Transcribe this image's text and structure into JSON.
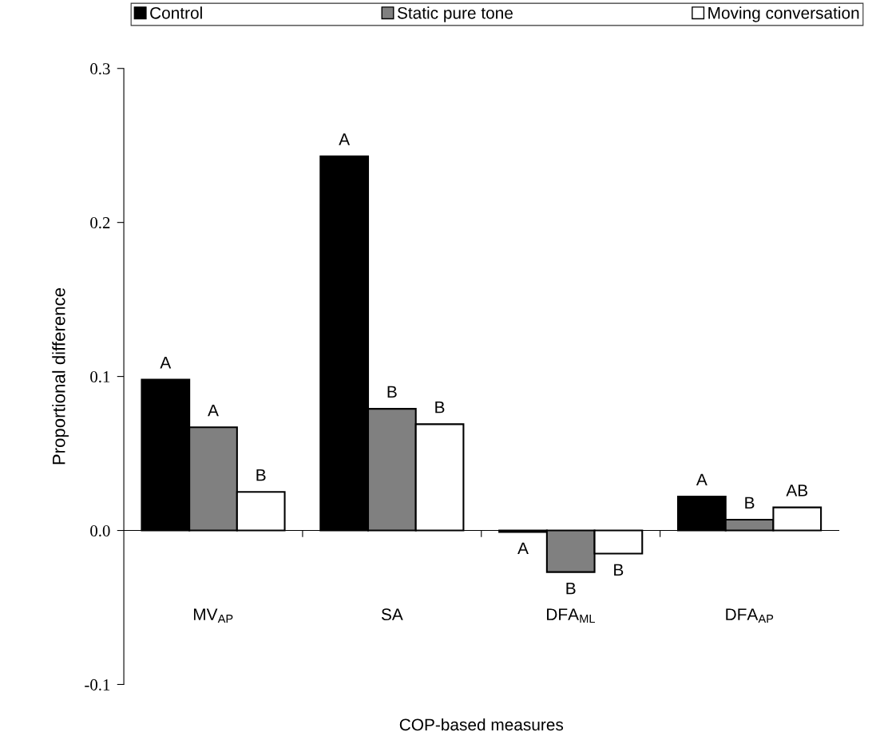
{
  "chart_data": {
    "type": "bar",
    "xlabel": "COP-based measures",
    "ylabel": "Proportional difference",
    "categories": [
      "MV$_{AP}$",
      "SA",
      "DFA$_{ML}$",
      "DFA$_{AP}$"
    ],
    "series": [
      {
        "name": "Control",
        "color": "#000000",
        "values": [
          0.098,
          0.243,
          -0.001,
          0.022
        ]
      },
      {
        "name": "Static pure tone",
        "color": "#808080",
        "values": [
          0.067,
          0.079,
          -0.027,
          0.007
        ]
      },
      {
        "name": "Moving conversation",
        "color": "#ffffff",
        "values": [
          0.025,
          0.069,
          -0.015,
          0.015
        ]
      }
    ],
    "ylim": [
      -0.1,
      0.3
    ],
    "yticks": [
      {
        "value": -0.1,
        "label": "-0.1"
      },
      {
        "value": 0,
        "label": "0.0"
      },
      {
        "value": 0.1,
        "label": "0.1"
      },
      {
        "value": 0.2,
        "label": "0.2"
      },
      {
        "value": 0.3,
        "label": "0.3"
      }
    ],
    "legend": "top",
    "annotations": [
      "A",
      "A",
      "B",
      "A",
      "B",
      "B",
      "A",
      "B",
      "B",
      "A",
      "B",
      "AB"
    ]
  }
}
